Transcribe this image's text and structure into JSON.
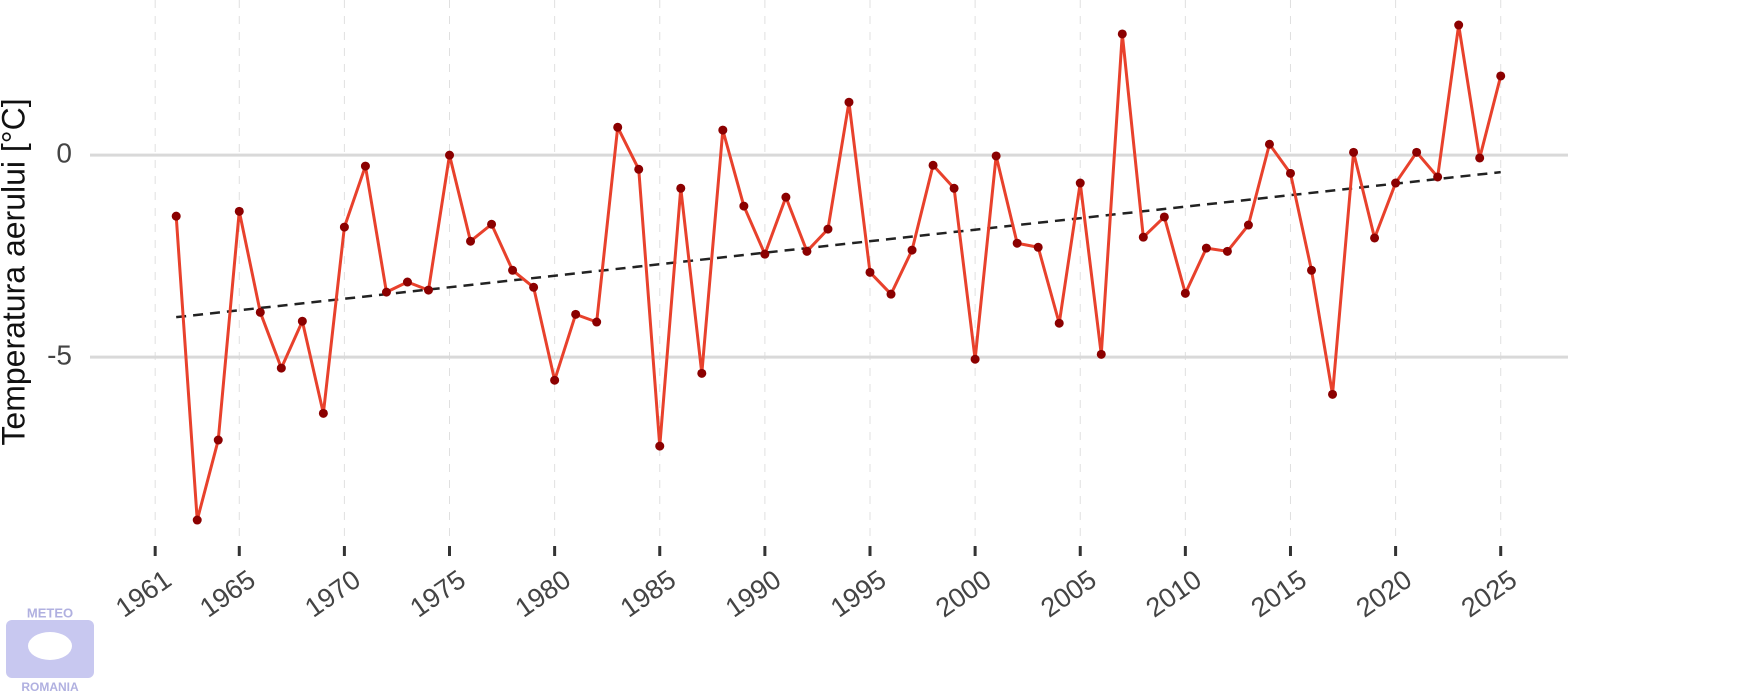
{
  "chart_data": {
    "type": "line",
    "y_label": "Temperatura aerului [°C]",
    "logo": {
      "top": "METEO",
      "bottom": "ROMANIA"
    },
    "x": [
      1962,
      1963,
      1964,
      1965,
      1966,
      1967,
      1968,
      1969,
      1970,
      1971,
      1972,
      1973,
      1974,
      1975,
      1976,
      1977,
      1978,
      1979,
      1980,
      1981,
      1982,
      1983,
      1984,
      1985,
      1986,
      1987,
      1988,
      1989,
      1990,
      1991,
      1992,
      1993,
      1994,
      1995,
      1996,
      1997,
      1998,
      1999,
      2000,
      2001,
      2002,
      2003,
      2004,
      2005,
      2006,
      2007,
      2008,
      2009,
      2010,
      2011,
      2012,
      2013,
      2014,
      2015,
      2016,
      2017,
      2018,
      2019,
      2020,
      2021,
      2022,
      2023,
      2024,
      2025
    ],
    "series": [
      {
        "color": "#e8412c",
        "marker_color": "#8b0000",
        "values": [
          -1.51,
          -9.03,
          -7.05,
          -1.39,
          -3.89,
          -5.27,
          -4.11,
          -6.39,
          -1.78,
          -0.27,
          -3.39,
          -3.14,
          -3.34,
          0.0,
          -2.13,
          -1.71,
          -2.85,
          -3.27,
          -5.57,
          -3.94,
          -4.13,
          0.69,
          -0.35,
          -7.2,
          -0.82,
          -5.4,
          0.62,
          -1.26,
          -2.45,
          -1.04,
          -2.38,
          -1.83,
          1.31,
          -2.9,
          -3.44,
          -2.35,
          -0.25,
          -0.82,
          -5.05,
          -0.02,
          -2.18,
          -2.28,
          -4.16,
          -0.69,
          -4.93,
          3.0,
          -2.03,
          -1.53,
          -3.42,
          -2.3,
          -2.38,
          -1.73,
          0.27,
          -0.45,
          -2.85,
          -5.92,
          0.07,
          -2.05,
          -0.69,
          0.07,
          -0.54,
          3.22,
          -0.07,
          1.96
        ]
      }
    ],
    "trend": {
      "x": [
        1962,
        2025
      ],
      "values": [
        -4.01,
        -0.42
      ],
      "color": "#222222"
    },
    "xlim": [
      1957.9,
      2028.2
    ],
    "ylim": [
      -9.5,
      3.84
    ],
    "xticks": [
      1961,
      1965,
      1970,
      1975,
      1980,
      1985,
      1990,
      1995,
      2000,
      2005,
      2010,
      2015,
      2020,
      2025
    ],
    "yticks": [
      -5,
      0
    ],
    "grid": true
  }
}
